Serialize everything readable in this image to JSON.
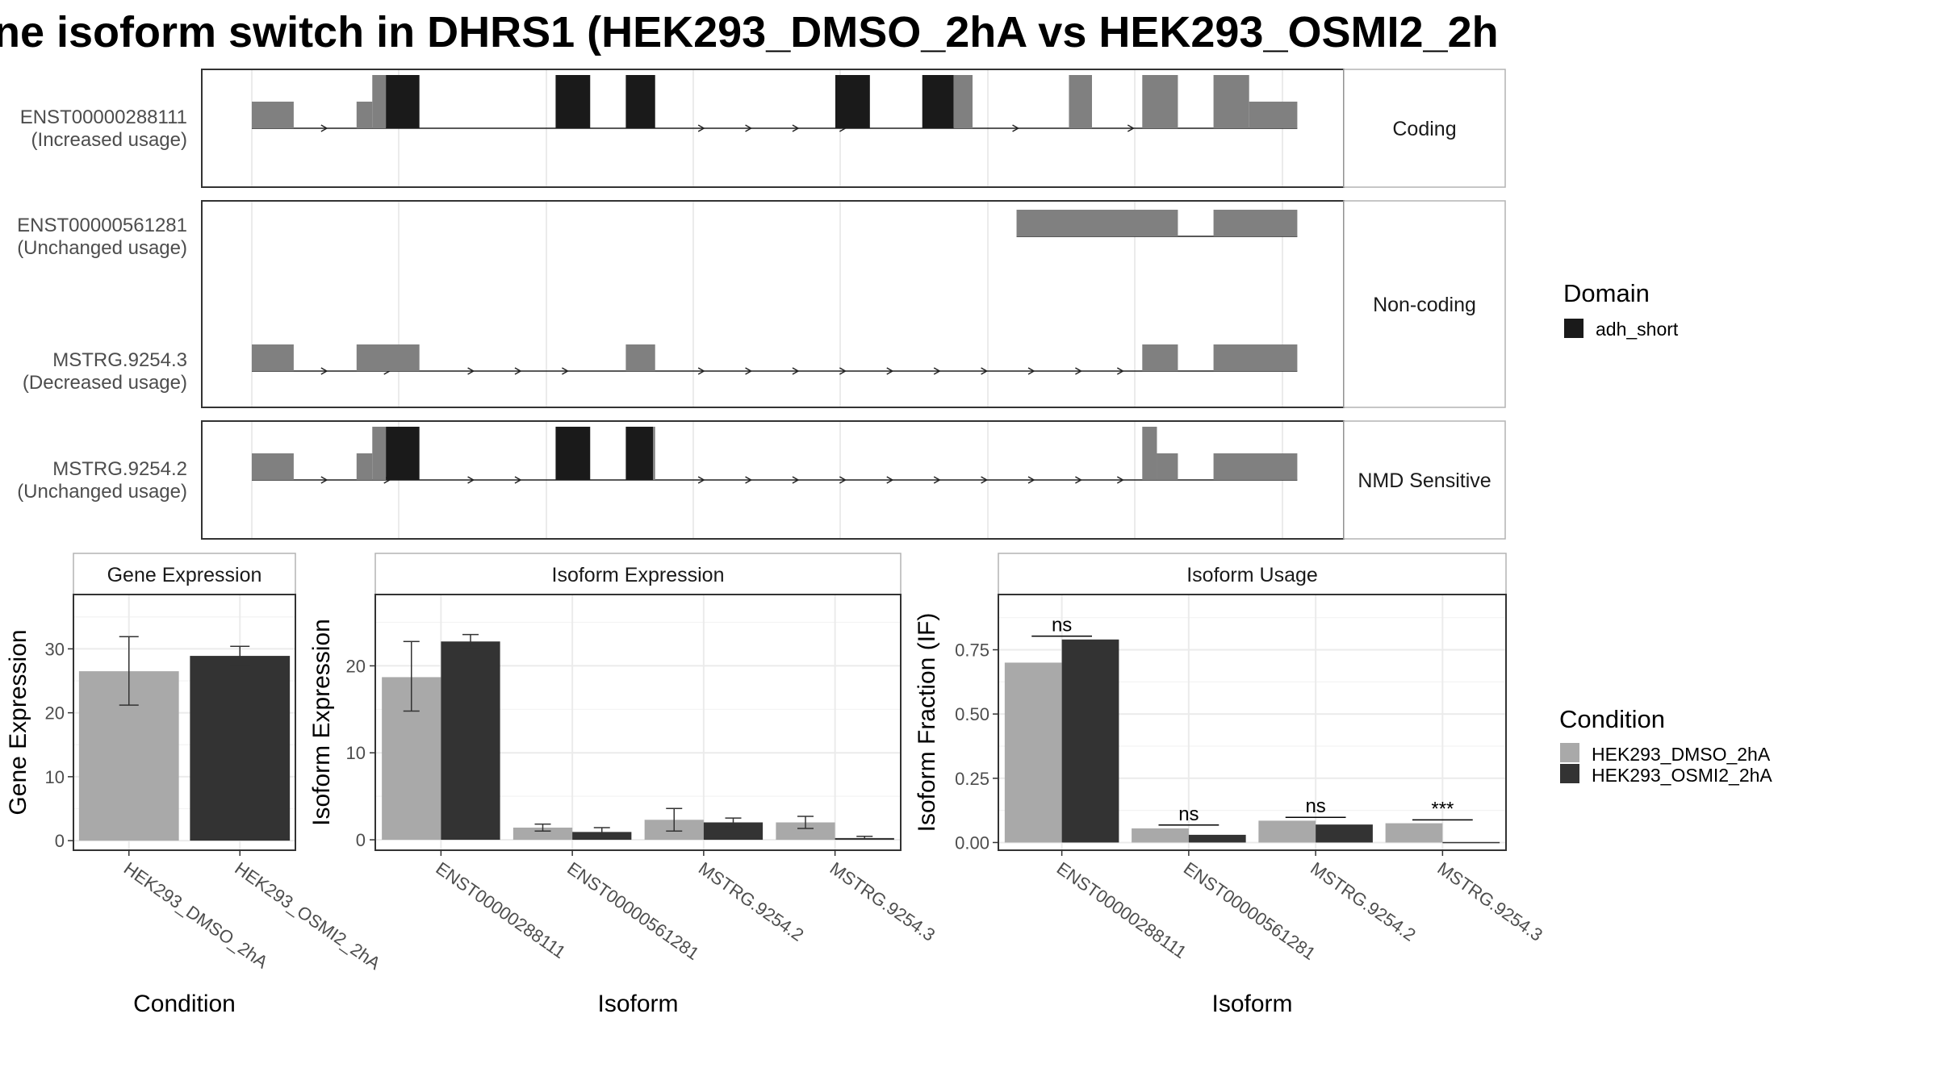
{
  "title": "ne isoform switch in DHRS1 (HEK293_DMSO_2hA vs HEK293_OSMI2_2h",
  "colors": {
    "exon": "#808080",
    "domain": "#1a1a1a",
    "cond1": "#a9a9a9",
    "cond2": "#333333",
    "grid": "#ebebeb",
    "panel_border": "#333333",
    "strip_border": "#b3b3b3"
  },
  "structure": {
    "genomic_range": [
      0,
      1000
    ],
    "groups": [
      {
        "label": "Coding",
        "transcripts": [
          {
            "name": "ENST00000288111",
            "usage": "(Increased usage)",
            "exons": [
              [
                0,
                40,
                "utr"
              ],
              [
                100,
                115,
                "utr"
              ],
              [
                115,
                128,
                "cds"
              ],
              [
                128,
                160,
                "domain"
              ],
              [
                290,
                323,
                "domain"
              ],
              [
                357,
                385,
                "domain"
              ],
              [
                557,
                590,
                "domain"
              ],
              [
                640,
                670,
                "domain"
              ],
              [
                670,
                688,
                "cds"
              ],
              [
                780,
                802,
                "cds"
              ],
              [
                850,
                884,
                "cds"
              ],
              [
                918,
                952,
                "cds"
              ],
              [
                952,
                998,
                "utr"
              ]
            ],
            "arrows": [
              70,
              430,
              475,
              520,
              565,
              730,
              840
            ]
          }
        ]
      },
      {
        "label": "Non-coding",
        "transcripts": [
          {
            "name": "ENST00000561281",
            "usage": "(Unchanged usage)",
            "exons": [
              [
                730,
                884,
                "utr"
              ],
              [
                918,
                998,
                "utr"
              ]
            ],
            "arrows": []
          },
          {
            "name": "MSTRG.9254.3",
            "usage": "(Decreased usage)",
            "exons": [
              [
                0,
                40,
                "utr"
              ],
              [
                100,
                160,
                "utr"
              ],
              [
                357,
                385,
                "utr"
              ],
              [
                850,
                884,
                "utr"
              ],
              [
                918,
                998,
                "utr"
              ]
            ],
            "arrows": [
              70,
              130,
              210,
              255,
              300,
              430,
              475,
              520,
              565,
              610,
              655,
              700,
              745,
              790,
              830
            ]
          }
        ]
      },
      {
        "label": "NMD Sensitive",
        "transcripts": [
          {
            "name": "MSTRG.9254.2",
            "usage": "(Unchanged usage)",
            "exons": [
              [
                0,
                40,
                "utr"
              ],
              [
                100,
                115,
                "utr"
              ],
              [
                115,
                128,
                "cds"
              ],
              [
                128,
                160,
                "domain"
              ],
              [
                290,
                323,
                "domain"
              ],
              [
                357,
                383,
                "domain"
              ],
              [
                383,
                385,
                "cds"
              ],
              [
                850,
                864,
                "cds"
              ],
              [
                864,
                884,
                "utr"
              ],
              [
                918,
                998,
                "utr"
              ]
            ],
            "arrows": [
              70,
              130,
              210,
              255,
              430,
              475,
              520,
              565,
              610,
              655,
              700,
              745,
              790,
              830
            ]
          }
        ]
      }
    ]
  },
  "legend_domain": {
    "title": "Domain",
    "items": [
      "adh_short"
    ]
  },
  "legend_condition": {
    "title": "Condition",
    "items": [
      "HEK293_DMSO_2hA",
      "HEK293_OSMI2_2hA"
    ]
  },
  "chart_data": [
    {
      "type": "bar",
      "title": "Gene Expression",
      "xlabel": "Condition",
      "ylabel": "Gene Expression",
      "categories": [
        "HEK293_DMSO_2hA",
        "HEK293_OSMI2_2hA"
      ],
      "values": [
        26.5,
        28.9
      ],
      "errors": [
        [
          21.2,
          31.9
        ],
        [
          27.4,
          30.4
        ]
      ],
      "yticks": [
        0,
        10,
        20,
        30
      ],
      "ylim": [
        -1.5,
        38.5
      ],
      "grid": true
    },
    {
      "type": "bar",
      "title": "Isoform Expression",
      "xlabel": "Isoform",
      "ylabel": "Isoform Expression",
      "categories": [
        "ENST00000288111",
        "ENST00000561281",
        "MSTRG.9254.2",
        "MSTRG.9254.3"
      ],
      "series": [
        {
          "name": "HEK293_DMSO_2hA",
          "values": [
            18.7,
            1.4,
            2.3,
            2.0
          ],
          "errors": [
            [
              14.8,
              22.8
            ],
            [
              1.0,
              1.8
            ],
            [
              1.0,
              3.6
            ],
            [
              1.3,
              2.7
            ]
          ]
        },
        {
          "name": "HEK293_OSMI2_2hA",
          "values": [
            22.8,
            0.9,
            2.0,
            0.2
          ],
          "errors": [
            [
              22.0,
              23.6
            ],
            [
              0.4,
              1.4
            ],
            [
              1.5,
              2.5
            ],
            [
              0.1,
              0.4
            ]
          ]
        }
      ],
      "yticks": [
        0,
        10,
        20
      ],
      "ylim": [
        -1.2,
        28.2
      ],
      "grid": true
    },
    {
      "type": "bar",
      "title": "Isoform Usage",
      "xlabel": "Isoform",
      "ylabel": "Isoform Fraction (IF)",
      "categories": [
        "ENST00000288111",
        "ENST00000561281",
        "MSTRG.9254.2",
        "MSTRG.9254.3"
      ],
      "series": [
        {
          "name": "HEK293_DMSO_2hA",
          "values": [
            0.7,
            0.055,
            0.085,
            0.075
          ]
        },
        {
          "name": "HEK293_OSMI2_2hA",
          "values": [
            0.79,
            0.03,
            0.07,
            0.002
          ]
        }
      ],
      "significance": [
        "ns",
        "ns",
        "ns",
        "***"
      ],
      "yticks": [
        0.0,
        0.25,
        0.5,
        0.75
      ],
      "yticklabels": [
        "0.00",
        "0.25",
        "0.50",
        "0.75"
      ],
      "ylim": [
        -0.03,
        0.965
      ],
      "grid": true
    }
  ]
}
